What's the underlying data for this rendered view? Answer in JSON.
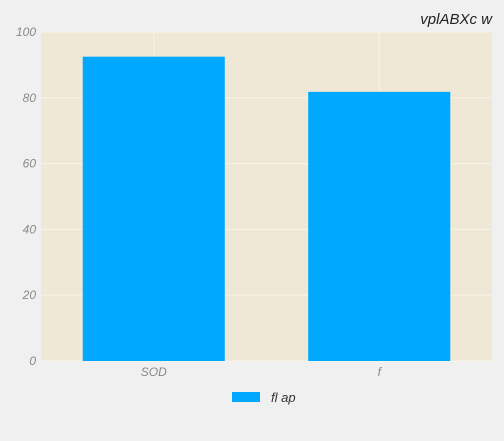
{
  "chart_data": {
    "type": "bar",
    "title": "vplABXc w",
    "xlabel": "",
    "ylabel": "",
    "categories": [
      "SOD",
      "f"
    ],
    "series": [
      {
        "name": "fl ap",
        "values": [
          92.5,
          81.8
        ],
        "color": "#00a9ff"
      }
    ],
    "ylim": [
      0,
      100
    ],
    "yticks": [
      0,
      20,
      40,
      60,
      80,
      100
    ],
    "grid": true,
    "legend_position": "bottom-center",
    "colors": {
      "plot_bg": "#f0e8d7",
      "grid": "#f8f3e8",
      "figure_bg": "#f0f0f0"
    }
  }
}
